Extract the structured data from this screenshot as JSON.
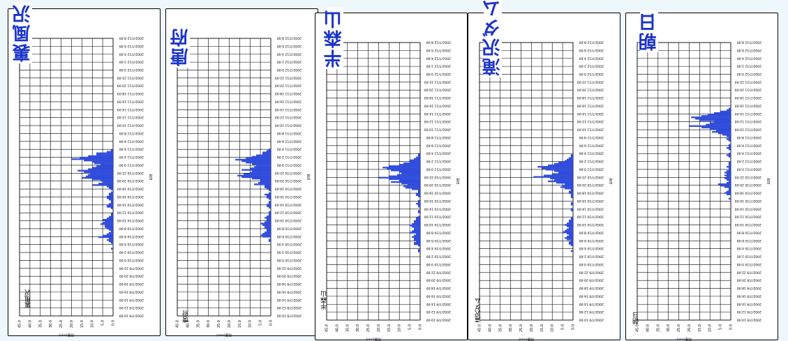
{
  "colors": {
    "bar": "#3452e8",
    "bar_edge": "#10208a",
    "title": "#1c34c8",
    "grid": "#000000"
  },
  "chart_data": [
    {
      "type": "bar",
      "orientation": "horizontal",
      "title": "裏風沢",
      "station_label": "裏風沢",
      "ylabel": "雨量(mm)",
      "xlabel": "日時",
      "ylim": [
        0,
        45
      ],
      "y_ticks": [
        "45.0",
        "40.0",
        "35.0",
        "30.0",
        "25.0",
        "20.0",
        "15.0",
        "10.0",
        "5.0",
        "0.0"
      ],
      "time_ticks": [
        "2002/7/9 10:00",
        "2002/7/9 12:00",
        "2002/7/9 14:00",
        "2002/7/9 16:00",
        "2002/7/9 18:00",
        "2002/7/9 20:00",
        "2002/7/9 22:00",
        "2002/7/10 0:00",
        "2002/7/10 2:00",
        "2002/7/10 4:00",
        "2002/7/10 6:00",
        "2002/7/10 8:00",
        "2002/7/10 10:00",
        "2002/7/10 12:00",
        "2002/7/10 14:00",
        "2002/7/10 16:00",
        "2002/7/10 18:00",
        "2002/7/10 20:00",
        "2002/7/10 22:00",
        "2002/7/11 0:00",
        "2002/7/11 2:00",
        "2002/7/11 4:00",
        "2002/7/11 6:00",
        "2002/7/11 8:00",
        "2002/7/11 10:00",
        "2002/7/11 12:00",
        "2002/7/11 14:00",
        "2002/7/11 16:00",
        "2002/7/11 18:00",
        "2002/7/11 20:00",
        "2002/7/11 22:00",
        "2002/7/12 0:00",
        "2002/7/12 2:00",
        "2002/7/12 4:00",
        "2002/7/12 6:00",
        "2002/7/12 8:00"
      ],
      "values": [
        0,
        0,
        0,
        0,
        0,
        0,
        0,
        0,
        0,
        0,
        0,
        0,
        0,
        0,
        0,
        0,
        0,
        0,
        0,
        0,
        0,
        0,
        0,
        0,
        0,
        0,
        0,
        0,
        0,
        0,
        0,
        0,
        0,
        0,
        0,
        0,
        0,
        0,
        0,
        0,
        0,
        0,
        0,
        0,
        0,
        0,
        1,
        0,
        0,
        0,
        1,
        2,
        3,
        2,
        7,
        5,
        3,
        2,
        1,
        2,
        3,
        4,
        4,
        6,
        5,
        4,
        5,
        3,
        2,
        1,
        1,
        0,
        0,
        0,
        1,
        3,
        3,
        2,
        1,
        1,
        2,
        3,
        3,
        2,
        2,
        1,
        0,
        1,
        2,
        3,
        10,
        7,
        5,
        6,
        10,
        15,
        13,
        12,
        11,
        14,
        17,
        12,
        10,
        8,
        6,
        9,
        10,
        14,
        20,
        16,
        12,
        8,
        8,
        3,
        1,
        0,
        0,
        0,
        0,
        0,
        0,
        0,
        0,
        0,
        0,
        0,
        0,
        0,
        0,
        0,
        0,
        0,
        0,
        0,
        0,
        0,
        0,
        0,
        0,
        0,
        0,
        0,
        0,
        0,
        0,
        0,
        0,
        0,
        0,
        0,
        0,
        0,
        0,
        0,
        0,
        0,
        0,
        0,
        0,
        0,
        0,
        0,
        0,
        0,
        0,
        0,
        0,
        0,
        0,
        0,
        0,
        0,
        0,
        0,
        0,
        0,
        0,
        0,
        0,
        0,
        0,
        0,
        0,
        0,
        0,
        0,
        0,
        0,
        0,
        0,
        0,
        0
      ]
    },
    {
      "type": "bar",
      "orientation": "horizontal",
      "title": "唐府",
      "station_label": "唐府",
      "ylabel": "雨量(mm)",
      "xlabel": "日時",
      "ylim": [
        0,
        45
      ],
      "y_ticks": [
        "45.0",
        "40.0",
        "35.0",
        "30.0",
        "25.0",
        "20.0",
        "15.0",
        "10.0",
        "5.0",
        "0.0"
      ],
      "time_ticks": [
        "2002/7/9 10:00",
        "2002/7/9 12:00",
        "2002/7/9 14:00",
        "2002/7/9 16:00",
        "2002/7/9 18:00",
        "2002/7/9 20:00",
        "2002/7/9 22:00",
        "2002/7/10 0:00",
        "2002/7/10 2:00",
        "2002/7/10 4:00",
        "2002/7/10 6:00",
        "2002/7/10 8:00",
        "2002/7/10 10:00",
        "2002/7/10 12:00",
        "2002/7/10 14:00",
        "2002/7/10 16:00",
        "2002/7/10 18:00",
        "2002/7/10 20:00",
        "2002/7/10 22:00",
        "2002/7/11 0:00",
        "2002/7/11 2:00",
        "2002/7/11 4:00",
        "2002/7/11 6:00",
        "2002/7/11 8:00",
        "2002/7/11 10:00",
        "2002/7/11 12:00",
        "2002/7/11 14:00",
        "2002/7/11 16:00",
        "2002/7/11 18:00",
        "2002/7/11 20:00",
        "2002/7/11 22:00",
        "2002/7/12 0:00",
        "2002/7/12 2:00",
        "2002/7/12 4:00",
        "2002/7/12 6:00",
        "2002/7/12 8:00"
      ],
      "values": [
        0,
        0,
        0,
        0,
        0,
        0,
        0,
        0,
        0,
        0,
        0,
        0,
        0,
        0,
        0,
        0,
        0,
        0,
        0,
        0,
        0,
        0,
        0,
        0,
        0,
        0,
        0,
        0,
        0,
        0,
        0,
        0,
        0,
        0,
        0,
        0,
        0,
        0,
        0,
        0,
        0,
        0,
        0,
        0,
        0,
        0,
        0,
        0,
        0,
        0,
        0,
        1,
        1,
        0,
        4,
        5,
        4,
        3,
        2,
        2,
        3,
        3,
        4,
        5,
        3,
        2,
        2,
        3,
        2,
        1,
        1,
        1,
        0,
        0,
        1,
        2,
        2,
        1,
        1,
        0,
        1,
        2,
        2,
        3,
        1,
        0,
        1,
        2,
        3,
        3,
        8,
        6,
        5,
        5,
        9,
        14,
        16,
        13,
        10,
        9,
        14,
        10,
        8,
        7,
        9,
        12,
        14,
        17,
        12,
        9,
        7,
        4,
        4,
        2,
        1,
        0,
        0,
        0,
        0,
        0,
        0,
        0,
        0,
        0,
        0,
        0,
        0,
        0,
        0,
        0,
        0,
        0,
        0,
        0,
        0,
        0,
        0,
        0,
        0,
        0,
        0,
        0,
        0,
        0,
        0,
        0,
        0,
        0,
        0,
        0,
        0,
        0,
        0,
        0,
        0,
        0,
        0,
        0,
        0,
        0,
        0,
        0,
        0,
        0,
        0,
        0,
        0,
        0,
        0,
        0,
        0,
        0,
        0,
        0,
        0,
        0,
        0,
        0,
        0,
        0,
        0,
        0,
        0,
        0,
        0,
        0,
        0,
        0,
        0,
        0,
        0
      ]
    },
    {
      "type": "bar",
      "orientation": "horizontal",
      "title": "半森山",
      "station_label": "半森山",
      "ylabel": "雨量(mm)",
      "xlabel": "日時",
      "ylim": [
        0,
        45
      ],
      "y_ticks": [
        "45.0",
        "40.0",
        "35.0",
        "30.0",
        "25.0",
        "20.0",
        "15.0",
        "10.0",
        "5.0",
        "0.0"
      ],
      "time_ticks": [
        "2002/7/9 10:00",
        "2002/7/9 12:00",
        "2002/7/9 14:00",
        "2002/7/9 16:00",
        "2002/7/9 18:00",
        "2002/7/9 20:00",
        "2002/7/9 22:00",
        "2002/7/10 0:00",
        "2002/7/10 2:00",
        "2002/7/10 4:00",
        "2002/7/10 6:00",
        "2002/7/10 8:00",
        "2002/7/10 10:00",
        "2002/7/10 12:00",
        "2002/7/10 14:00",
        "2002/7/10 16:00",
        "2002/7/10 18:00",
        "2002/7/10 20:00",
        "2002/7/10 22:00",
        "2002/7/11 0:00",
        "2002/7/11 2:00",
        "2002/7/11 4:00",
        "2002/7/11 6:00",
        "2002/7/11 8:00",
        "2002/7/11 10:00",
        "2002/7/11 12:00",
        "2002/7/11 14:00",
        "2002/7/11 16:00",
        "2002/7/11 18:00",
        "2002/7/11 20:00",
        "2002/7/11 22:00",
        "2002/7/12 0:00",
        "2002/7/12 2:00",
        "2002/7/12 4:00",
        "2002/7/12 6:00",
        "2002/7/12 8:00"
      ],
      "values": [
        0,
        0,
        0,
        0,
        0,
        0,
        0,
        0,
        0,
        0,
        0,
        0,
        0,
        0,
        0,
        0,
        0,
        0,
        0,
        0,
        0,
        0,
        0,
        0,
        0,
        0,
        0,
        0,
        0,
        0,
        0,
        0,
        0,
        0,
        0,
        0,
        0,
        0,
        0,
        0,
        0,
        0,
        0,
        0,
        0,
        0,
        0,
        1,
        1,
        0,
        0,
        1,
        3,
        3,
        2,
        3,
        3,
        4,
        3,
        2,
        5,
        4,
        3,
        3,
        4,
        5,
        4,
        3,
        3,
        2,
        2,
        1,
        0,
        0,
        1,
        1,
        0,
        0,
        1,
        1,
        2,
        1,
        1,
        0,
        0,
        1,
        2,
        2,
        1,
        1,
        4,
        7,
        8,
        6,
        9,
        14,
        10,
        15,
        20,
        15,
        11,
        9,
        10,
        14,
        16,
        18,
        15,
        10,
        8,
        5,
        5,
        3,
        2,
        1,
        1,
        0,
        0,
        0,
        0,
        0,
        0,
        0,
        0,
        0,
        0,
        0,
        0,
        0,
        0,
        0,
        0,
        0,
        0,
        0,
        0,
        0,
        0,
        0,
        0,
        0,
        0,
        0,
        0,
        0,
        0,
        0,
        0,
        0,
        0,
        0,
        0,
        0,
        0,
        0,
        0,
        0,
        0,
        0,
        0,
        0,
        0,
        0,
        0,
        0,
        0,
        0,
        0,
        0,
        0,
        0,
        0,
        0,
        0,
        0,
        0,
        0,
        0,
        0,
        0,
        0,
        0,
        0,
        0,
        0,
        0,
        0,
        0,
        0,
        0,
        0,
        0,
        0
      ]
    },
    {
      "type": "bar",
      "orientation": "horizontal",
      "title": "滝沢ダム",
      "station_label": "滝沢ダム",
      "ylabel": "雨量(mm)",
      "xlabel": "日時",
      "ylim": [
        0,
        45
      ],
      "y_ticks": [
        "45.0",
        "40.0",
        "35.0",
        "30.0",
        "25.0",
        "20.0",
        "15.0",
        "10.0",
        "5.0",
        "0.0"
      ],
      "time_ticks": [
        "2002/7/9 10:00",
        "2002/7/9 12:00",
        "2002/7/9 14:00",
        "2002/7/9 16:00",
        "2002/7/9 18:00",
        "2002/7/9 20:00",
        "2002/7/9 22:00",
        "2002/7/10 0:00",
        "2002/7/10 2:00",
        "2002/7/10 4:00",
        "2002/7/10 6:00",
        "2002/7/10 8:00",
        "2002/7/10 10:00",
        "2002/7/10 12:00",
        "2002/7/10 14:00",
        "2002/7/10 16:00",
        "2002/7/10 18:00",
        "2002/7/10 20:00",
        "2002/7/10 22:00",
        "2002/7/11 0:00",
        "2002/7/11 2:00",
        "2002/7/11 4:00",
        "2002/7/11 6:00",
        "2002/7/11 8:00",
        "2002/7/11 10:00",
        "2002/7/11 12:00",
        "2002/7/11 14:00",
        "2002/7/11 16:00",
        "2002/7/11 18:00",
        "2002/7/11 20:00",
        "2002/7/11 22:00",
        "2002/7/12 0:00",
        "2002/7/12 2:00",
        "2002/7/12 4:00",
        "2002/7/12 6:00",
        "2002/7/12 8:00"
      ],
      "values": [
        0,
        0,
        0,
        0,
        0,
        0,
        0,
        0,
        0,
        0,
        0,
        0,
        0,
        0,
        0,
        0,
        0,
        0,
        0,
        0,
        0,
        0,
        0,
        0,
        0,
        0,
        0,
        0,
        0,
        0,
        0,
        0,
        0,
        0,
        0,
        0,
        0,
        0,
        0,
        0,
        0,
        0,
        0,
        0,
        0,
        0,
        0,
        1,
        0,
        0,
        0,
        1,
        2,
        2,
        1,
        3,
        4,
        3,
        2,
        3,
        5,
        4,
        3,
        2,
        3,
        4,
        3,
        2,
        2,
        1,
        1,
        0,
        0,
        0,
        0,
        1,
        1,
        0,
        0,
        1,
        1,
        0,
        0,
        0,
        1,
        1,
        1,
        2,
        2,
        1,
        4,
        6,
        5,
        4,
        8,
        12,
        9,
        11,
        19,
        14,
        10,
        7,
        9,
        13,
        15,
        17,
        12,
        9,
        7,
        4,
        3,
        2,
        1,
        1,
        0,
        0,
        0,
        0,
        0,
        0,
        0,
        0,
        0,
        0,
        0,
        0,
        0,
        0,
        0,
        0,
        0,
        0,
        0,
        0,
        0,
        0,
        0,
        0,
        0,
        0,
        0,
        0,
        0,
        0,
        0,
        0,
        0,
        0,
        0,
        0,
        0,
        0,
        0,
        0,
        0,
        0,
        0,
        0,
        0,
        0,
        0,
        0,
        0,
        0,
        0,
        0,
        0,
        0,
        0,
        0,
        0,
        0,
        0,
        0,
        0,
        0,
        0,
        0,
        0,
        0,
        0,
        0,
        0,
        0,
        0,
        0,
        0,
        0,
        0,
        0,
        0
      ]
    },
    {
      "type": "bar",
      "orientation": "horizontal",
      "title": "朝日",
      "station_label": "朝日",
      "ylabel": "雨量(mm)",
      "xlabel": "日時",
      "ylim": [
        0,
        45
      ],
      "y_ticks": [
        "45.0",
        "40.0",
        "35.0",
        "30.0",
        "25.0",
        "20.0",
        "15.0",
        "10.0",
        "5.0",
        "0.0"
      ],
      "time_ticks": [
        "2002/7/9 10:00",
        "2002/7/9 12:00",
        "2002/7/9 14:00",
        "2002/7/9 16:00",
        "2002/7/9 18:00",
        "2002/7/9 20:00",
        "2002/7/9 22:00",
        "2002/7/10 0:00",
        "2002/7/10 2:00",
        "2002/7/10 4:00",
        "2002/7/10 6:00",
        "2002/7/10 8:00",
        "2002/7/10 10:00",
        "2002/7/10 12:00",
        "2002/7/10 14:00",
        "2002/7/10 16:00",
        "2002/7/10 18:00",
        "2002/7/10 20:00",
        "2002/7/10 22:00",
        "2002/7/11 0:00",
        "2002/7/11 2:00",
        "2002/7/11 4:00",
        "2002/7/11 6:00",
        "2002/7/11 8:00",
        "2002/7/11 10:00",
        "2002/7/11 12:00",
        "2002/7/11 14:00",
        "2002/7/11 16:00",
        "2002/7/11 18:00",
        "2002/7/11 20:00",
        "2002/7/11 22:00",
        "2002/7/12 0:00",
        "2002/7/12 2:00",
        "2002/7/12 4:00",
        "2002/7/12 6:00",
        "2002/7/12 8:00"
      ],
      "values": [
        0,
        0,
        0,
        0,
        0,
        0,
        0,
        0,
        0,
        0,
        0,
        0,
        0,
        0,
        0,
        0,
        0,
        0,
        0,
        0,
        0,
        0,
        0,
        0,
        0,
        0,
        0,
        0,
        0,
        0,
        0,
        0,
        0,
        0,
        0,
        0,
        0,
        0,
        0,
        0,
        0,
        0,
        0,
        0,
        0,
        0,
        0,
        0,
        0,
        0,
        0,
        0,
        0,
        0,
        0,
        0,
        0,
        0,
        0,
        0,
        0,
        0,
        0,
        0,
        0,
        0,
        0,
        0,
        0,
        0,
        0,
        0,
        0,
        0,
        0,
        0,
        0,
        0,
        0,
        0,
        0,
        0,
        0,
        1,
        0,
        0,
        2,
        3,
        2,
        1,
        1,
        3,
        5,
        6,
        2,
        1,
        2,
        3,
        2,
        3,
        2,
        3,
        2,
        1,
        1,
        2,
        1,
        1,
        1,
        0,
        0,
        0,
        1,
        2,
        1,
        0,
        0,
        1,
        2,
        1,
        1,
        0,
        0,
        1,
        2,
        1,
        2,
        4,
        6,
        9,
        7,
        10,
        14,
        20,
        12,
        10,
        8,
        15,
        17,
        19,
        14,
        11,
        8,
        5,
        2,
        1,
        0,
        0,
        0,
        0,
        0,
        0,
        0,
        0,
        0,
        0,
        0,
        0,
        0,
        0,
        0,
        0,
        0,
        0,
        0,
        0,
        0,
        0,
        0,
        0,
        0,
        0,
        0,
        0,
        0,
        0,
        0,
        0,
        0,
        0,
        0,
        0,
        0,
        0,
        0,
        0,
        0,
        0,
        0,
        0,
        0
      ]
    }
  ]
}
